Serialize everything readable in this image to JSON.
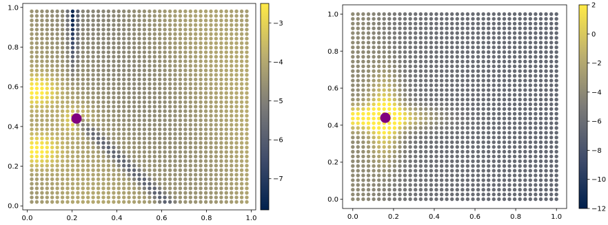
{
  "chart_data": [
    {
      "type": "scatter",
      "title": "",
      "xlabel": "",
      "ylabel": "",
      "xlim": [
        -0.02,
        1.02
      ],
      "ylim": [
        -0.02,
        1.02
      ],
      "x_ticks": [
        0.0,
        0.2,
        0.4,
        0.6,
        0.8,
        1.0
      ],
      "y_ticks": [
        0.0,
        0.2,
        0.4,
        0.6,
        0.8,
        1.0
      ],
      "x_tick_labels": [
        "0.0",
        "0.2",
        "0.4",
        "0.6",
        "0.8",
        "1.0"
      ],
      "y_tick_labels": [
        "0.0",
        "0.2",
        "0.4",
        "0.6",
        "0.8",
        "1.0"
      ],
      "grid": false,
      "grid_points": {
        "x_min": 0.02,
        "x_max": 0.98,
        "y_min": 0.02,
        "y_max": 0.98,
        "count_per_side": 43
      },
      "highlight_point": {
        "x": 0.22,
        "y": 0.44,
        "color": "#800080"
      },
      "colormap": "cividis",
      "colorbar": {
        "min": -7.8,
        "max": -2.5,
        "ticks": [
          -3,
          -4,
          -5,
          -6,
          -7
        ],
        "tick_labels": [
          "−3",
          "−4",
          "−5",
          "−6",
          "−7"
        ]
      }
    },
    {
      "type": "scatter",
      "title": "",
      "xlabel": "",
      "ylabel": "",
      "xlim": [
        -0.05,
        1.05
      ],
      "ylim": [
        -0.05,
        1.05
      ],
      "x_ticks": [
        0.0,
        0.2,
        0.4,
        0.6,
        0.8,
        1.0
      ],
      "y_ticks": [
        0.0,
        0.2,
        0.4,
        0.6,
        0.8,
        1.0
      ],
      "x_tick_labels": [
        "0.0",
        "0.2",
        "0.4",
        "0.6",
        "0.8",
        "1.0"
      ],
      "y_tick_labels": [
        "0.0",
        "0.2",
        "0.4",
        "0.6",
        "0.8",
        "1.0"
      ],
      "grid": false,
      "grid_points": {
        "x_min": 0.0,
        "x_max": 1.0,
        "y_min": 0.0,
        "y_max": 1.0,
        "count_per_side": 40
      },
      "highlight_point": {
        "x": 0.16,
        "y": 0.44,
        "color": "#800080"
      },
      "colormap": "cividis",
      "colorbar": {
        "min": -12,
        "max": 2,
        "ticks": [
          2,
          0,
          -2,
          -4,
          -6,
          -8,
          -10,
          -12
        ],
        "tick_labels": [
          "2",
          "0",
          "−2",
          "−4",
          "−6",
          "−8",
          "−10",
          "−12"
        ]
      }
    }
  ]
}
